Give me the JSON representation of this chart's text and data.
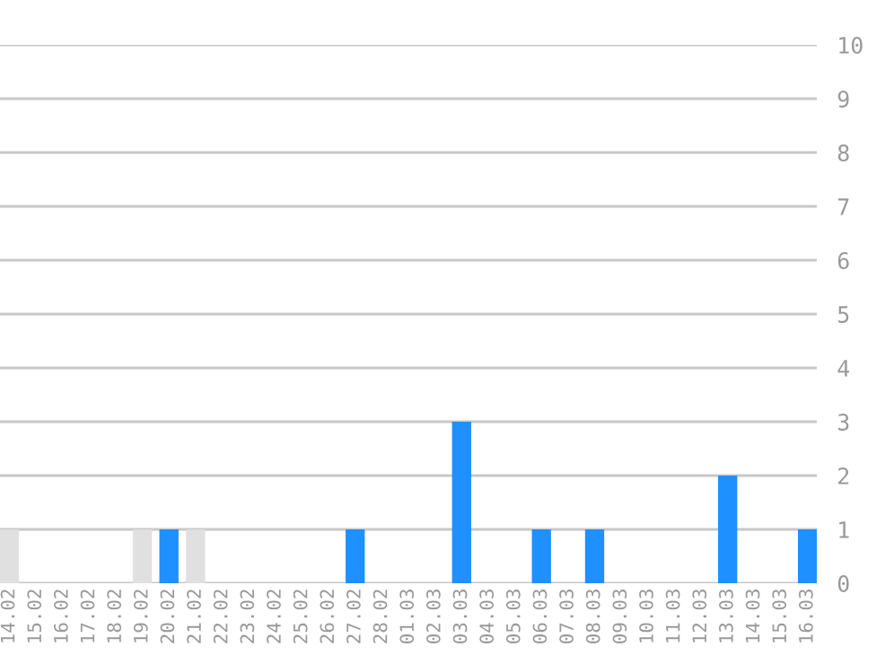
{
  "chart_data": {
    "type": "bar",
    "categories": [
      "14.02",
      "15.02",
      "16.02",
      "17.02",
      "18.02",
      "19.02",
      "20.02",
      "21.02",
      "22.02",
      "23.02",
      "24.02",
      "25.02",
      "26.02",
      "27.02",
      "28.02",
      "01.03",
      "02.03",
      "03.03",
      "04.03",
      "05.03",
      "06.03",
      "07.03",
      "08.03",
      "09.03",
      "10.03",
      "11.03",
      "12.03",
      "13.03",
      "14.03",
      "15.03",
      "16.03"
    ],
    "values": [
      1,
      0,
      0,
      0,
      0,
      1,
      1,
      1,
      0,
      0,
      0,
      0,
      0,
      1,
      0,
      0,
      0,
      3,
      0,
      0,
      1,
      0,
      1,
      0,
      0,
      0,
      0,
      2,
      0,
      0,
      1
    ],
    "colors": [
      "#e0e0e0",
      "#1e90ff",
      "#1e90ff",
      "#1e90ff",
      "#1e90ff",
      "#e0e0e0",
      "#1e90ff",
      "#e0e0e0",
      "#1e90ff",
      "#1e90ff",
      "#1e90ff",
      "#1e90ff",
      "#1e90ff",
      "#1e90ff",
      "#1e90ff",
      "#1e90ff",
      "#1e90ff",
      "#1e90ff",
      "#1e90ff",
      "#1e90ff",
      "#1e90ff",
      "#1e90ff",
      "#1e90ff",
      "#1e90ff",
      "#1e90ff",
      "#1e90ff",
      "#1e90ff",
      "#1e90ff",
      "#1e90ff",
      "#1e90ff",
      "#1e90ff"
    ],
    "ylim": [
      0,
      10
    ],
    "yticks": [
      0,
      1,
      2,
      3,
      4,
      5,
      6,
      7,
      8,
      9,
      10
    ],
    "grid": "y",
    "legend": false
  }
}
